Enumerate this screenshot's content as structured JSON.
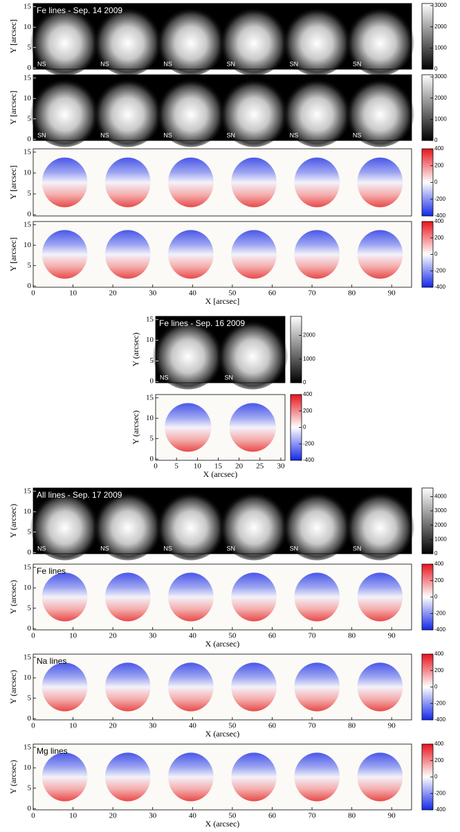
{
  "chart_data": [
    {
      "type": "heatmap",
      "title": "Fe lines - Sep. 14 2009",
      "ylabel": "Y [arcsec]",
      "ylim": [
        -0.3,
        15.8
      ],
      "yticks": [
        0,
        5,
        10,
        15
      ],
      "panel_labels": [
        "NS",
        "NS",
        "NS",
        "SN",
        "SN",
        "SN"
      ],
      "colorbar": {
        "lim": [
          0,
          3100
        ],
        "ticks": [
          0,
          1000,
          2000,
          3000
        ]
      }
    },
    {
      "type": "heatmap",
      "ylabel": "Y [arcsec]",
      "ylim": [
        -0.3,
        15.8
      ],
      "yticks": [
        0,
        5,
        10,
        15
      ],
      "panel_labels": [
        "SN",
        "NS",
        "NS",
        "SN",
        "NS",
        "NS"
      ],
      "colorbar": {
        "lim": [
          0,
          3100
        ],
        "ticks": [
          0,
          1000,
          2000,
          3000
        ]
      }
    },
    {
      "type": "heatmap",
      "ylabel": "Y [arcsec]",
      "ylim": [
        -0.3,
        15.8
      ],
      "yticks": [
        0,
        5,
        10,
        15
      ],
      "colorbar": {
        "lim": [
          -400,
          400
        ],
        "ticks": [
          -400,
          -200,
          0,
          200,
          400
        ]
      }
    },
    {
      "type": "heatmap",
      "ylabel": "Y [arcsec]",
      "xlabel": "X [arcsec]",
      "xlim": [
        0,
        95
      ],
      "xticks": [
        0,
        10,
        20,
        30,
        40,
        50,
        60,
        70,
        80,
        90
      ],
      "ylim": [
        -0.3,
        15.8
      ],
      "yticks": [
        0,
        5,
        10,
        15
      ],
      "colorbar": {
        "lim": [
          -400,
          400
        ],
        "ticks": [
          -400,
          -200,
          0,
          200,
          400
        ]
      }
    },
    {
      "type": "heatmap",
      "title": "Fe lines - Sep. 16 2009",
      "ylabel": "Y (arcsec)",
      "ylim": [
        -0.3,
        15.8
      ],
      "yticks": [
        0,
        5,
        10,
        15
      ],
      "panel_labels": [
        "NS",
        "SN"
      ],
      "colorbar": {
        "lim": [
          0,
          2800
        ],
        "ticks": [
          0,
          1000,
          2000
        ]
      }
    },
    {
      "type": "heatmap",
      "ylabel": "Y (arcsec)",
      "xlabel": "X (arcsec)",
      "xlim": [
        0,
        31
      ],
      "xticks": [
        0,
        5,
        10,
        15,
        20,
        25,
        30
      ],
      "ylim": [
        -0.3,
        15.8
      ],
      "yticks": [
        0,
        5,
        10,
        15
      ],
      "colorbar": {
        "lim": [
          -400,
          400
        ],
        "ticks": [
          -400,
          -200,
          0,
          200,
          400
        ]
      }
    },
    {
      "type": "heatmap",
      "title": "All lines - Sep. 17 2009",
      "ylabel": "Y (arcsec)",
      "ylim": [
        -0.3,
        15.8
      ],
      "yticks": [
        0,
        5,
        10,
        15
      ],
      "panel_labels": [
        "NS",
        "NS",
        "NS",
        "SN",
        "SN",
        "SN"
      ],
      "colorbar": {
        "lim": [
          0,
          4600
        ],
        "ticks": [
          0,
          1000,
          2000,
          3000,
          4000
        ]
      }
    },
    {
      "type": "heatmap",
      "title": "Fe lines",
      "ylabel": "Y (arcsec)",
      "xlabel": "X (arcsec)",
      "xlim": [
        0,
        95
      ],
      "xticks": [
        0,
        10,
        20,
        30,
        40,
        50,
        60,
        70,
        80,
        90
      ],
      "ylim": [
        -0.3,
        15.8
      ],
      "yticks": [
        0,
        5,
        10,
        15
      ],
      "colorbar": {
        "lim": [
          -400,
          400
        ],
        "ticks": [
          -400,
          -200,
          0,
          200,
          400
        ]
      }
    },
    {
      "type": "heatmap",
      "title": "Na lines",
      "ylabel": "Y (arcsec)",
      "xlabel": "X (arcsec)",
      "xlim": [
        0,
        95
      ],
      "xticks": [
        0,
        10,
        20,
        30,
        40,
        50,
        60,
        70,
        80,
        90
      ],
      "ylim": [
        -0.3,
        15.8
      ],
      "yticks": [
        0,
        5,
        10,
        15
      ],
      "colorbar": {
        "lim": [
          -400,
          400
        ],
        "ticks": [
          -400,
          -200,
          0,
          200,
          400
        ]
      }
    },
    {
      "type": "heatmap",
      "title": "Mg lines",
      "ylabel": "Y (arcsec)",
      "xlabel": "X (arcsec)",
      "xlim": [
        0,
        95
      ],
      "xticks": [
        0,
        10,
        20,
        30,
        40,
        50,
        60,
        70,
        80,
        90
      ],
      "ylim": [
        -0.3,
        15.8
      ],
      "yticks": [
        0,
        5,
        10,
        15
      ],
      "colorbar": {
        "lim": [
          -400,
          400
        ],
        "ticks": [
          -400,
          -200,
          0,
          200,
          400
        ]
      }
    }
  ]
}
